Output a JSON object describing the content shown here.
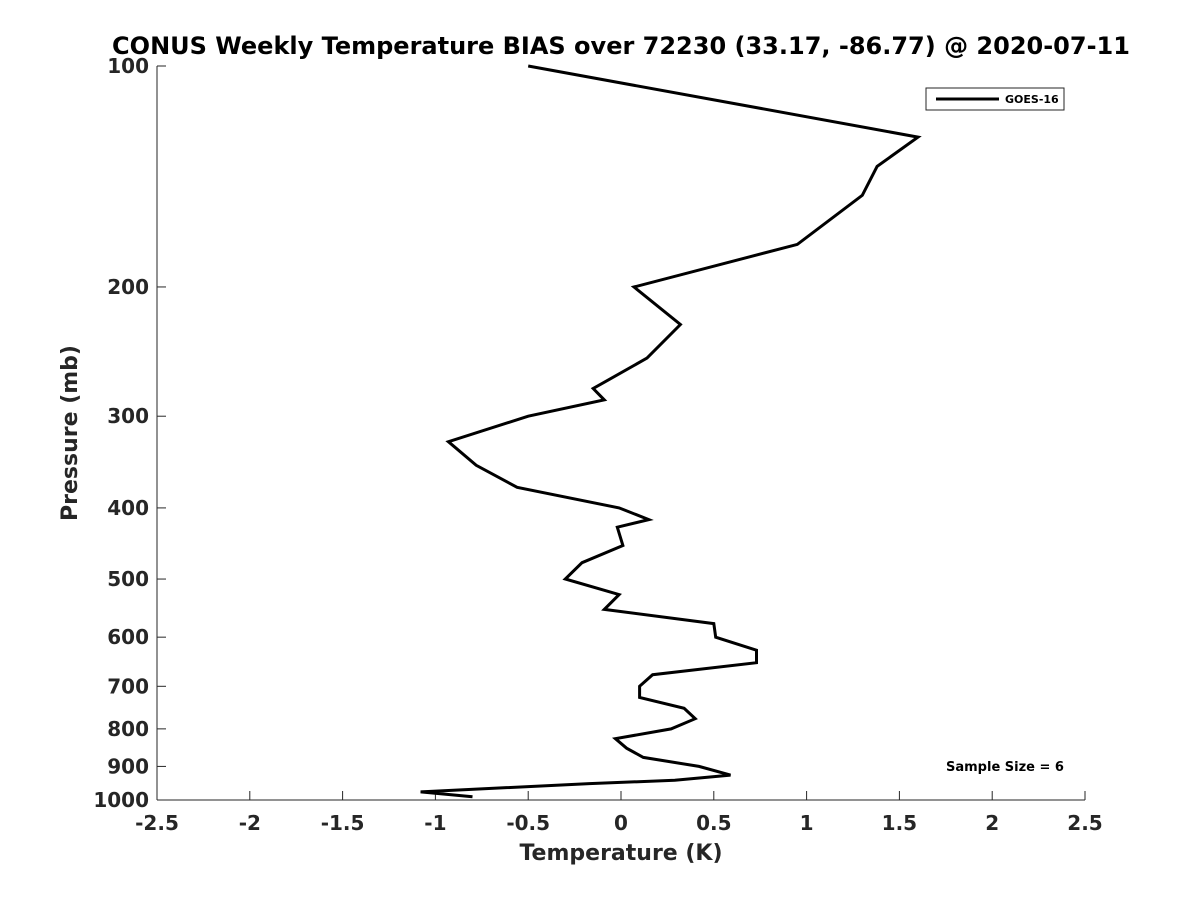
{
  "chart_data": {
    "type": "line",
    "title": "CONUS Weekly Temperature BIAS over 72230 (33.17, -86.77) @ 2020-07-11",
    "xlabel": "Temperature (K)",
    "ylabel": "Pressure (mb)",
    "xlim": [
      -2.5,
      2.5
    ],
    "ylim": [
      1000,
      100
    ],
    "y_scale": "log",
    "y_reversed": true,
    "grid": false,
    "legend_position": "top-right",
    "x_ticks": [
      "-2.5",
      "-2",
      "-1.5",
      "-1",
      "-0.5",
      "0",
      "0.5",
      "1",
      "1.5",
      "2",
      "2.5"
    ],
    "y_ticks": [
      "100",
      "200",
      "300",
      "400",
      "500",
      "600",
      "700",
      "800",
      "900",
      "1000"
    ],
    "annotation": "Sample Size = 6",
    "series": [
      {
        "name": "GOES-16",
        "color": "#000000",
        "points": [
          [
            -0.5,
            100
          ],
          [
            1.6,
            125
          ],
          [
            1.38,
            137
          ],
          [
            1.3,
            150
          ],
          [
            0.95,
            175
          ],
          [
            0.07,
            200
          ],
          [
            0.32,
            225
          ],
          [
            0.14,
            250
          ],
          [
            -0.15,
            275
          ],
          [
            -0.09,
            285
          ],
          [
            -0.5,
            300
          ],
          [
            -0.93,
            325
          ],
          [
            -0.78,
            350
          ],
          [
            -0.56,
            375
          ],
          [
            -0.01,
            400
          ],
          [
            0.15,
            415
          ],
          [
            -0.02,
            425
          ],
          [
            0.01,
            450
          ],
          [
            -0.21,
            475
          ],
          [
            -0.3,
            500
          ],
          [
            -0.01,
            525
          ],
          [
            -0.09,
            550
          ],
          [
            0.5,
            575
          ],
          [
            0.51,
            600
          ],
          [
            0.73,
            625
          ],
          [
            0.73,
            650
          ],
          [
            0.17,
            675
          ],
          [
            0.1,
            700
          ],
          [
            0.1,
            725
          ],
          [
            0.34,
            750
          ],
          [
            0.4,
            775
          ],
          [
            0.27,
            800
          ],
          [
            -0.03,
            825
          ],
          [
            0.03,
            850
          ],
          [
            0.12,
            875
          ],
          [
            0.42,
            900
          ],
          [
            0.59,
            925
          ],
          [
            0.29,
            940
          ],
          [
            -0.17,
            950
          ],
          [
            -1.08,
            975
          ],
          [
            -0.8,
            990
          ]
        ]
      }
    ]
  }
}
